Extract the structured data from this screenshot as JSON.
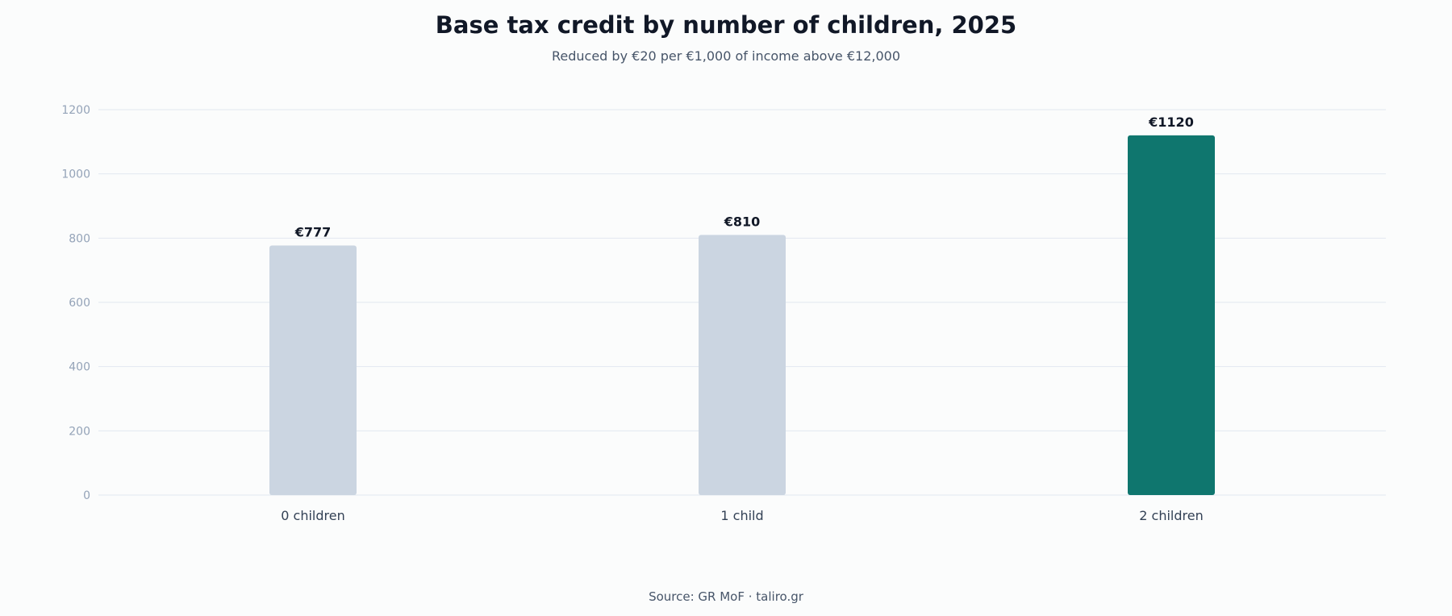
{
  "chart_data": {
    "type": "bar",
    "title": "Base tax credit by number of children, 2025",
    "subtitle": "Reduced by €20 per €1,000 of income above €12,000",
    "categories": [
      "0 children",
      "1 child",
      "2 children"
    ],
    "values": [
      777,
      810,
      1120
    ],
    "value_labels": [
      "€777",
      "€810",
      "€1120"
    ],
    "ylim": [
      0,
      1200
    ],
    "yticks": [
      0,
      200,
      400,
      600,
      800,
      1000,
      1200
    ],
    "grid": true,
    "highlight_index": 2,
    "colors": {
      "bar": "#cbd5e1",
      "highlight": "#0f766e",
      "grid": "#e2e8f0"
    }
  },
  "source": "Source: GR MoF · taliro.gr"
}
